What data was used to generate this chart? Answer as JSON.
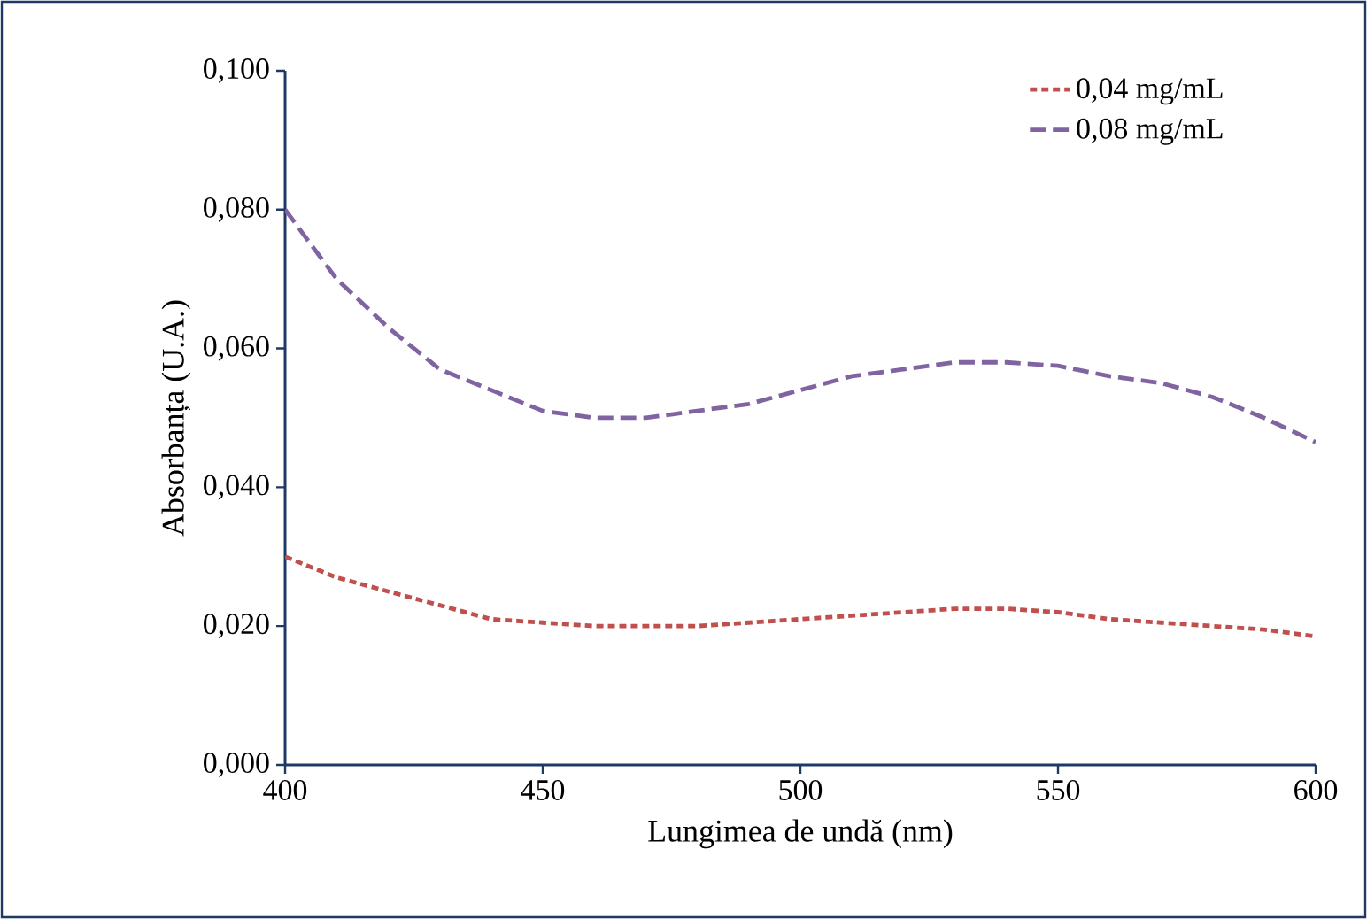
{
  "chart_data": {
    "type": "line",
    "xlabel": "Lungimea de undă (nm)",
    "ylabel": "Absorbanța (U.A.)",
    "x": [
      400,
      410,
      420,
      430,
      440,
      450,
      460,
      470,
      480,
      490,
      500,
      510,
      520,
      530,
      540,
      550,
      560,
      570,
      580,
      590,
      600
    ],
    "series": [
      {
        "name": "0,04 mg/mL",
        "color": "#c0504d",
        "values": [
          0.03,
          0.027,
          0.025,
          0.023,
          0.021,
          0.0205,
          0.02,
          0.02,
          0.02,
          0.0205,
          0.021,
          0.0215,
          0.022,
          0.0225,
          0.0225,
          0.022,
          0.021,
          0.0205,
          0.02,
          0.0195,
          0.0185
        ]
      },
      {
        "name": "0,08 mg/mL",
        "color": "#8064a2",
        "values": [
          0.08,
          0.07,
          0.063,
          0.057,
          0.054,
          0.051,
          0.05,
          0.05,
          0.051,
          0.052,
          0.054,
          0.056,
          0.057,
          0.058,
          0.058,
          0.0575,
          0.056,
          0.055,
          0.053,
          0.05,
          0.0465
        ]
      }
    ],
    "xlim": [
      400,
      600
    ],
    "xticks": [
      400,
      450,
      500,
      550,
      600
    ],
    "ylim": [
      0,
      0.1
    ],
    "yticks": [
      {
        "value": 0,
        "label": "0,000"
      },
      {
        "value": 0.02,
        "label": "0,020"
      },
      {
        "value": 0.04,
        "label": "0,040"
      },
      {
        "value": 0.06,
        "label": "0,060"
      },
      {
        "value": 0.08,
        "label": "0,080"
      },
      {
        "value": 0.1,
        "label": "0,100"
      }
    ],
    "grid": false,
    "legend": "top right",
    "marker": "none",
    "line_style": "dashed"
  }
}
